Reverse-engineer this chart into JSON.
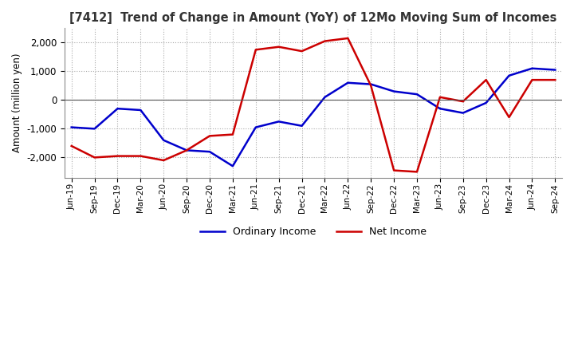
{
  "title": "[7412]  Trend of Change in Amount (YoY) of 12Mo Moving Sum of Incomes",
  "ylabel": "Amount (million yen)",
  "ylim": [
    -2700,
    2500
  ],
  "yticks": [
    -2000,
    -1000,
    0,
    1000,
    2000
  ],
  "x_labels": [
    "Jun-19",
    "Sep-19",
    "Dec-19",
    "Mar-20",
    "Jun-20",
    "Sep-20",
    "Dec-20",
    "Mar-21",
    "Jun-21",
    "Sep-21",
    "Dec-21",
    "Mar-22",
    "Jun-22",
    "Sep-22",
    "Dec-22",
    "Mar-23",
    "Jun-23",
    "Sep-23",
    "Dec-23",
    "Mar-24",
    "Jun-24",
    "Sep-24"
  ],
  "ordinary_income": [
    -950,
    -1000,
    -300,
    -350,
    -1400,
    -1750,
    -1800,
    -2300,
    -950,
    -750,
    -900,
    100,
    600,
    550,
    300,
    200,
    -300,
    -450,
    -100,
    850,
    1100,
    1050
  ],
  "net_income": [
    -1600,
    -2000,
    -1950,
    -1950,
    -2100,
    -1750,
    -1250,
    -1200,
    1750,
    1850,
    1700,
    2050,
    2150,
    500,
    -2450,
    -2500,
    100,
    -50,
    700,
    -600,
    700,
    700
  ],
  "ordinary_color": "#0000cc",
  "net_color": "#cc0000",
  "background_color": "#ffffff",
  "grid_color": "#aaaaaa"
}
